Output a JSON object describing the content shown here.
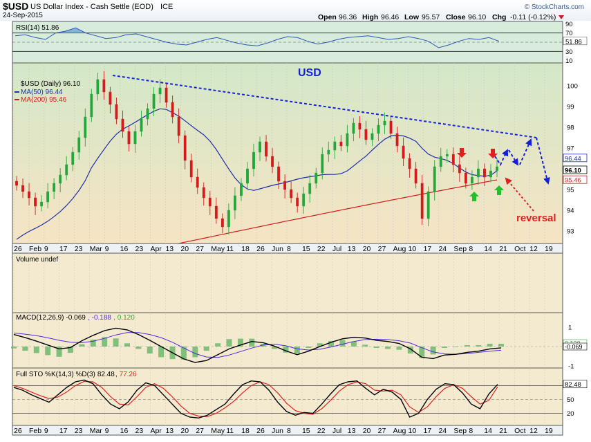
{
  "header": {
    "symbol": "$USD",
    "name": "US Dollar Index - Cash Settle (EOD)",
    "exchange": "ICE",
    "date": "24-Sep-2015",
    "watermark": "© StockCharts.com",
    "quote": {
      "open_label": "Open",
      "open": "96.36",
      "high_label": "High",
      "high": "96.46",
      "low_label": "Low",
      "low": "95.57",
      "close_label": "Close",
      "close": "96.10",
      "chg_label": "Chg",
      "chg": "-0.11 (-0.12%)"
    }
  },
  "colors": {
    "panel_bg": "#f2efd2",
    "up": "#22a83a",
    "down": "#d41a1a",
    "ma50": "#1c2ea8",
    "ma200": "#d01a1a",
    "trend": "#1420d8",
    "annot_red": "#e02020",
    "annot_green": "#22c02a"
  },
  "rsi": {
    "label": "RSI(14) 51.86",
    "last_tag": "51.86",
    "ticks": [
      "90",
      "70",
      "50",
      "30",
      "10"
    ],
    "values": [
      64,
      66,
      60,
      56,
      70,
      74,
      81,
      70,
      64,
      58,
      60,
      66,
      68,
      62,
      56,
      50,
      46,
      44,
      50,
      56,
      60,
      54,
      48,
      44,
      42,
      48,
      56,
      62,
      60,
      52,
      46,
      50,
      56,
      60,
      62,
      64,
      60,
      56,
      58,
      62,
      58,
      52,
      38,
      44,
      52,
      58,
      56,
      60,
      52
    ]
  },
  "price": {
    "title": "USD",
    "legend_symbol": "$USD (Daily) 96.10",
    "ma50_label": "MA(50) 96.44",
    "ma200_label": "MA(200) 95.46",
    "ticks": [
      "100",
      "99",
      "98",
      "97",
      "96",
      "95",
      "94",
      "93"
    ],
    "tags": {
      "ma50": "96.44",
      "close": "96.10",
      "ma200": "95.46"
    },
    "closes": [
      95.2,
      94.9,
      94.6,
      94.2,
      94.4,
      94.9,
      95.3,
      95.7,
      96.2,
      96.8,
      97.5,
      98.5,
      99.6,
      100.3,
      99.7,
      99.1,
      98.4,
      97.8,
      97.2,
      97.8,
      98.4,
      98.9,
      99.6,
      99.9,
      99.2,
      98.5,
      97.6,
      96.4,
      95.6,
      95.1,
      94.6,
      94.2,
      93.6,
      93.2,
      94.0,
      94.7,
      95.3,
      96.0,
      96.8,
      97.3,
      96.6,
      96.1,
      95.4,
      95.0,
      94.6,
      94.2,
      94.8,
      95.3,
      95.8,
      96.7,
      96.9,
      97.3,
      97.1,
      97.7,
      98.2,
      97.9,
      97.4,
      97.7,
      98.1,
      98.3,
      97.7,
      97.1,
      96.5,
      96.0,
      95.3,
      93.6,
      94.9,
      96.1,
      96.6,
      96.7,
      96.2,
      95.8,
      95.3,
      95.6,
      96.0,
      95.6,
      95.9,
      96.1
    ],
    "xrange": [
      "2015-01-26",
      "2015-10-23"
    ],
    "ylim": [
      92.4,
      101.1
    ]
  },
  "annotation": {
    "text": "reversal"
  },
  "volume": {
    "label": "Volume undef"
  },
  "macd": {
    "label_prefix": "MACD(12,26,9)",
    "macd": "-0.069",
    "signal": "-0.188",
    "hist": "0.120",
    "ticks": [
      "1",
      "0",
      "-1"
    ],
    "tags": {
      "hist": "0.120",
      "macd": "-0.069"
    },
    "macd_values": [
      0.62,
      0.46,
      0.28,
      0.08,
      -0.12,
      -0.05,
      0.3,
      0.58,
      0.82,
      0.95,
      0.86,
      0.62,
      0.32,
      0.0,
      -0.32,
      -0.64,
      -0.82,
      -0.72,
      -0.42,
      -0.12,
      0.08,
      0.26,
      0.2,
      0.02,
      -0.22,
      -0.42,
      -0.24,
      0.0,
      0.22,
      0.4,
      0.48,
      0.44,
      0.32,
      0.26,
      0.16,
      -0.12,
      -0.55,
      -0.62,
      -0.44,
      -0.4,
      -0.3,
      -0.24,
      -0.12,
      -0.069
    ],
    "signal_values": [
      0.7,
      0.64,
      0.56,
      0.45,
      0.32,
      0.22,
      0.2,
      0.28,
      0.42,
      0.6,
      0.72,
      0.72,
      0.62,
      0.46,
      0.22,
      -0.08,
      -0.36,
      -0.54,
      -0.56,
      -0.44,
      -0.26,
      -0.08,
      0.08,
      0.12,
      0.04,
      -0.12,
      -0.18,
      -0.14,
      -0.02,
      0.12,
      0.26,
      0.36,
      0.38,
      0.36,
      0.3,
      0.18,
      -0.06,
      -0.28,
      -0.38,
      -0.4,
      -0.36,
      -0.3,
      -0.24,
      -0.188
    ]
  },
  "sto": {
    "label_prefix": "Full STO %K(14,3) %D(3)",
    "k": "82.48",
    "d": "77.26",
    "ticks": [
      "80",
      "50",
      "20"
    ],
    "last_tag": "82.48",
    "k_values": [
      76,
      70,
      60,
      52,
      44,
      60,
      76,
      88,
      92,
      84,
      60,
      40,
      30,
      45,
      70,
      86,
      80,
      60,
      40,
      20,
      12,
      10,
      16,
      28,
      40,
      62,
      82,
      90,
      88,
      70,
      44,
      24,
      16,
      22,
      20,
      40,
      62,
      82,
      88,
      90,
      74,
      60,
      72,
      66,
      50,
      12,
      20,
      50,
      72,
      84,
      82,
      64,
      40,
      30,
      62,
      82.48
    ],
    "d_values": [
      80,
      74,
      66,
      58,
      52,
      55,
      66,
      80,
      89,
      88,
      76,
      56,
      40,
      38,
      56,
      76,
      84,
      74,
      56,
      36,
      20,
      14,
      13,
      20,
      32,
      46,
      64,
      80,
      88,
      82,
      64,
      42,
      26,
      20,
      18,
      30,
      48,
      68,
      82,
      88,
      84,
      70,
      68,
      70,
      60,
      34,
      22,
      34,
      56,
      74,
      82,
      74,
      56,
      40,
      48,
      77.26
    ]
  },
  "x_axis_labels": [
    "26",
    "Feb",
    "9",
    "17",
    "23",
    "Mar",
    "9",
    "16",
    "23",
    "Apr",
    "13",
    "20",
    "27",
    "May",
    "11",
    "18",
    "26",
    "Jun",
    "8",
    "15",
    "22",
    "Jul",
    "13",
    "20",
    "27",
    "Aug",
    "10",
    "17",
    "24",
    "Sep",
    "8",
    "14",
    "21",
    "Oct",
    "12",
    "19"
  ]
}
